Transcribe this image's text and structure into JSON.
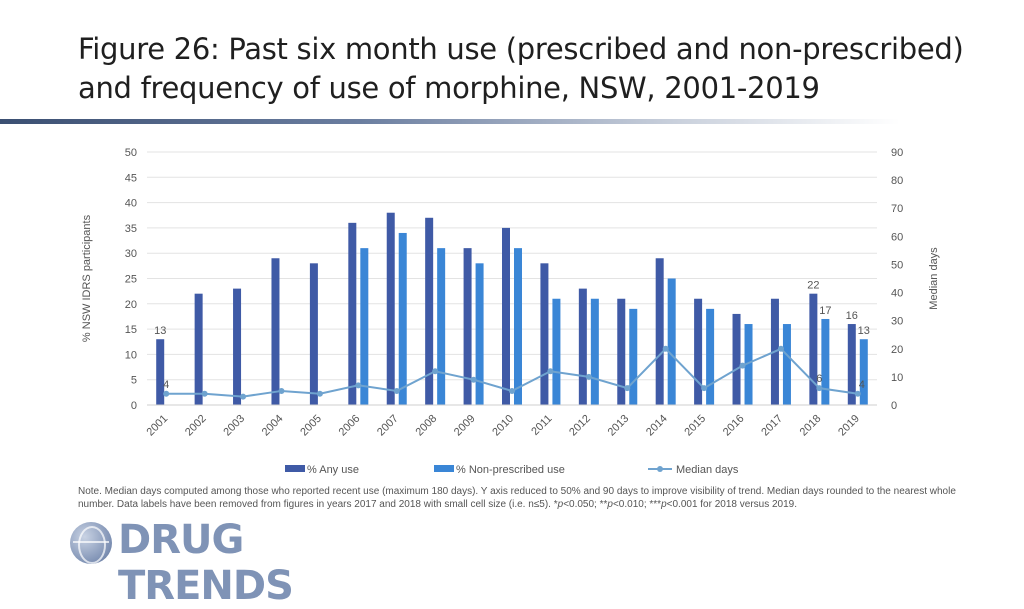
{
  "title": "Figure 26: Past six month use (prescribed and non-prescribed) and frequency of use of morphine, NSW, 2001-2019",
  "note_html": "Note. Median days computed among those who reported recent use (maximum 180 days). Y axis reduced to 50% and 90 days to improve visibility of trend. Median days rounded to the nearest whole number. Data labels have been removed from figures in years 2017 and 2018 with small cell size (i.e. n≤5). *<i>p</i>&lt;0.050; **<i>p</i>&lt;0.010; ***<i>p</i>&lt;0.001 for 2018 versus 2019.",
  "logo_text": "DRUG TRENDS",
  "colors": {
    "any_use": "#3f5aa6",
    "non_prescribed": "#3a86d6",
    "median_days": "#6fa3cf",
    "grid": "#e3e3e3",
    "axis_text": "#555555"
  },
  "chart_data": {
    "type": "bar",
    "categories": [
      "2001",
      "2002",
      "2003",
      "2004",
      "2005",
      "2006",
      "2007",
      "2008",
      "2009",
      "2010",
      "2011",
      "2012",
      "2013",
      "2014",
      "2015",
      "2016",
      "2017",
      "2018",
      "2019"
    ],
    "series": [
      {
        "name": "% Any use",
        "kind": "bar",
        "axis": "left",
        "values": [
          13,
          22,
          23,
          29,
          28,
          36,
          38,
          37,
          31,
          35,
          28,
          23,
          21,
          29,
          21,
          18,
          21,
          22,
          16
        ]
      },
      {
        "name": "% Non-prescribed use",
        "kind": "bar",
        "axis": "left",
        "values": [
          null,
          null,
          null,
          null,
          null,
          31,
          34,
          31,
          28,
          31,
          21,
          21,
          19,
          25,
          19,
          16,
          16,
          17,
          13
        ]
      },
      {
        "name": "Median days",
        "kind": "line",
        "axis": "right",
        "values": [
          4,
          4,
          3,
          5,
          4,
          7,
          5,
          12,
          9,
          5,
          12,
          10,
          6,
          20,
          6,
          14,
          20,
          6,
          4
        ]
      }
    ],
    "data_labels": [
      {
        "series": 0,
        "index": 0,
        "text": "13"
      },
      {
        "series": 2,
        "index": 0,
        "text": "4"
      },
      {
        "series": 0,
        "index": 17,
        "text": "22"
      },
      {
        "series": 1,
        "index": 17,
        "text": "17"
      },
      {
        "series": 2,
        "index": 17,
        "text": "6"
      },
      {
        "series": 0,
        "index": 18,
        "text": "16"
      },
      {
        "series": 1,
        "index": 18,
        "text": "13"
      },
      {
        "series": 2,
        "index": 18,
        "text": "4"
      }
    ],
    "ylabel": "% NSW IDRS participants",
    "y2label": "Median days",
    "ylim": [
      0,
      50
    ],
    "y2lim": [
      0,
      90
    ],
    "yticks": [
      0,
      5,
      10,
      15,
      20,
      25,
      30,
      35,
      40,
      45,
      50
    ],
    "y2ticks": [
      0,
      10,
      20,
      30,
      40,
      50,
      60,
      70,
      80,
      90
    ],
    "grid": true,
    "legend_position": "bottom"
  }
}
